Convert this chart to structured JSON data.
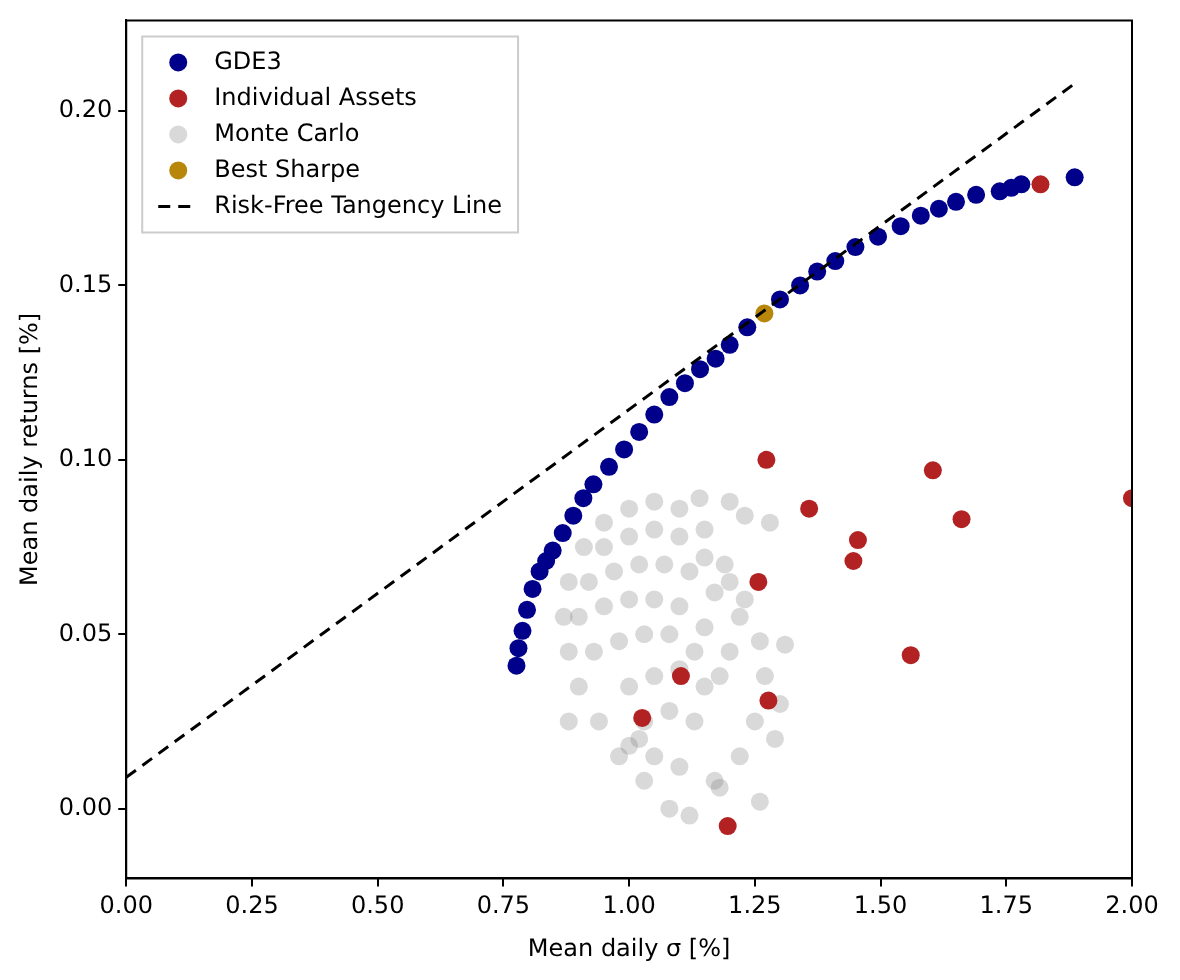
{
  "chart_data": {
    "type": "scatter",
    "xlabel": "Mean daily σ [%]",
    "ylabel": "Mean daily returns [%]",
    "xlim": [
      0,
      2
    ],
    "xticks": [
      {
        "value": 0,
        "label": "0.00"
      },
      0.25,
      {
        "value": 0.5,
        "label": "0.50"
      },
      0.75,
      {
        "value": 1,
        "label": "1.00"
      },
      1.25,
      {
        "value": 1.5,
        "label": "1.50"
      },
      1.75,
      {
        "value": 2,
        "label": "2.00"
      }
    ],
    "ylim": [
      -0.02,
      0.226
    ],
    "yticks": [
      {
        "value": 0,
        "label": "0.00"
      },
      0.05,
      {
        "value": 0.1,
        "label": "0.10"
      },
      0.15,
      {
        "value": 0.2,
        "label": "0.20"
      }
    ],
    "grid": false,
    "legend": "top left",
    "marker": "circle",
    "series": [
      {
        "name": "GDE3",
        "color": "#00008b",
        "x": [
          0.776,
          0.78,
          0.788,
          0.797,
          0.808,
          0.822,
          0.835,
          0.848,
          0.868,
          0.889,
          0.909,
          0.929,
          0.96,
          0.99,
          1.02,
          1.05,
          1.08,
          1.111,
          1.141,
          1.172,
          1.2,
          1.235,
          1.269,
          1.3,
          1.34,
          1.374,
          1.41,
          1.45,
          1.495,
          1.54,
          1.58,
          1.616,
          1.65,
          1.69,
          1.737,
          1.76,
          1.78,
          1.806,
          1.886
        ],
        "values": [
          0.041,
          0.046,
          0.051,
          0.057,
          0.063,
          0.068,
          0.071,
          0.074,
          0.079,
          0.084,
          0.089,
          0.093,
          0.098,
          0.103,
          0.108,
          0.113,
          0.118,
          0.122,
          0.126,
          0.129,
          0.133,
          0.138,
          null,
          0.146,
          0.15,
          0.154,
          0.157,
          0.161,
          0.164,
          0.167,
          0.17,
          0.172,
          0.174,
          0.176,
          0.177,
          0.178,
          0.179,
          null,
          0.181
        ]
      },
      {
        "name": "Individual Assets",
        "color": "#b22222",
        "x": [
          1.026,
          1.103,
          1.196,
          1.257,
          1.273,
          1.277,
          1.358,
          1.446,
          1.455,
          1.56,
          1.604,
          1.661,
          1.818,
          2.0
        ],
        "values": [
          0.026,
          0.038,
          -0.005,
          0.065,
          0.1,
          0.031,
          0.086,
          0.071,
          0.077,
          0.044,
          0.097,
          0.083,
          0.179,
          0.089
        ]
      },
      {
        "name": "Monte Carlo",
        "color": "#808080",
        "x": [
          1.0,
          1.05,
          1.1,
          1.15,
          1.19,
          1.23,
          1.26,
          1.27,
          1.25,
          1.22,
          1.18,
          1.12,
          1.08,
          1.03,
          0.98,
          0.94,
          0.9,
          0.88,
          0.87,
          0.88,
          0.91,
          0.95,
          1.2,
          1.23,
          1.28,
          1.31,
          1.26,
          1.02,
          0.88,
          1.3,
          1.29,
          1.17,
          1.14,
          0.95,
          1.0,
          1.05,
          1.1,
          1.15,
          1.2,
          0.92,
          0.97,
          1.02,
          1.07,
          1.12,
          1.17,
          1.22,
          0.9,
          0.95,
          1.0,
          1.05,
          1.1,
          1.15,
          1.2,
          0.93,
          0.98,
          1.03,
          1.08,
          1.13,
          1.18,
          1.0,
          1.05,
          1.1,
          1.15,
          1.03,
          1.08,
          1.13,
          1.0,
          1.05,
          1.1
        ],
        "values": [
          0.086,
          0.088,
          0.086,
          0.08,
          0.07,
          0.06,
          0.048,
          0.038,
          0.025,
          0.015,
          0.006,
          -0.002,
          0.0,
          0.008,
          0.015,
          0.025,
          0.035,
          0.045,
          0.055,
          0.065,
          0.075,
          0.082,
          0.088,
          0.084,
          0.082,
          0.047,
          0.002,
          0.02,
          0.025,
          0.03,
          0.02,
          0.008,
          0.089,
          0.075,
          0.078,
          0.08,
          0.078,
          0.072,
          0.065,
          0.065,
          0.068,
          0.07,
          0.07,
          0.068,
          0.062,
          0.055,
          0.055,
          0.058,
          0.06,
          0.06,
          0.058,
          0.052,
          0.045,
          0.045,
          0.048,
          0.05,
          0.05,
          0.045,
          0.038,
          0.035,
          0.038,
          0.04,
          0.035,
          0.025,
          0.028,
          0.025,
          0.018,
          0.015,
          0.012
        ]
      },
      {
        "name": "Best Sharpe",
        "color": "#b8860b",
        "x": [
          1.269
        ],
        "values": [
          0.142
        ]
      },
      {
        "name": "Risk-Free Tangency Line",
        "type": "line",
        "color": "#000000",
        "line_style": "dashed",
        "marker": "none",
        "x": [
          0,
          1.887
        ],
        "values": [
          0.009,
          0.208
        ]
      }
    ]
  }
}
